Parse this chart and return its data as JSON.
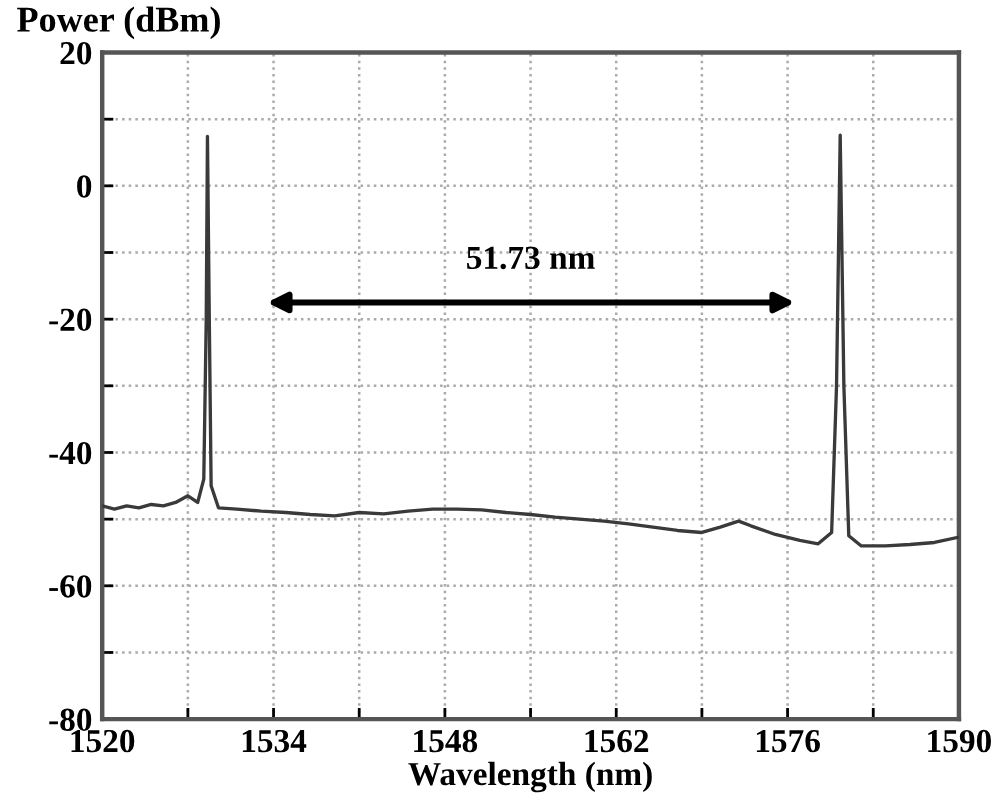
{
  "chart_data": {
    "type": "line",
    "xlabel": "Wavelength (nm)",
    "ylabel": "Power (dBm)",
    "x": [
      1520,
      1521,
      1522,
      1523,
      1524,
      1525,
      1526,
      1527,
      1527.8,
      1528.3,
      1528.5,
      1528.6,
      1528.75,
      1528.9,
      1529.5,
      1531,
      1533,
      1535,
      1537,
      1539,
      1541,
      1543,
      1545,
      1547,
      1549,
      1551,
      1553,
      1555,
      1557,
      1559,
      1561,
      1563,
      1565,
      1567,
      1569,
      1570.5,
      1572,
      1573,
      1575,
      1577,
      1578.5,
      1579.6,
      1580,
      1580.3,
      1580.6,
      1581,
      1582,
      1584,
      1586,
      1588,
      1590
    ],
    "series": [
      {
        "color": "#3a3a3a",
        "values": [
          -48,
          -48.5,
          -48,
          -48.3,
          -47.8,
          -48,
          -47.5,
          -46.5,
          -47.5,
          -44,
          -20,
          7.4,
          -20,
          -45,
          -48.3,
          -48.5,
          -48.8,
          -49,
          -49.3,
          -49.5,
          -49,
          -49.2,
          -48.8,
          -48.5,
          -48.5,
          -48.6,
          -49,
          -49.3,
          -49.7,
          -50,
          -50.3,
          -50.7,
          -51.2,
          -51.7,
          -52,
          -51.2,
          -50.3,
          -51,
          -52.3,
          -53.2,
          -53.7,
          -52,
          -30,
          7.6,
          -30,
          -52.5,
          -54,
          -54,
          -53.8,
          -53.5,
          -52.7
        ]
      }
    ],
    "xlim": [
      1520,
      1590
    ],
    "xticks": [
      1520,
      {
        "value": 1527,
        "label": null
      },
      1534,
      {
        "value": 1541,
        "label": null
      },
      1548,
      {
        "value": 1555,
        "label": null
      },
      1562,
      {
        "value": 1569,
        "label": null
      },
      1576,
      {
        "value": 1583,
        "label": null
      },
      1590
    ],
    "ylim": [
      -80,
      20
    ],
    "yticks": [
      -80,
      {
        "value": -70,
        "label": null
      },
      -60,
      {
        "value": -50,
        "label": null
      },
      -40,
      {
        "value": -30,
        "label": null
      },
      -20,
      {
        "value": -10,
        "label": null
      },
      0,
      {
        "value": 10,
        "label": null
      },
      20
    ],
    "grid": true,
    "line_style": "solid",
    "marker": "none",
    "annotations": [
      "51.73 nm"
    ]
  }
}
